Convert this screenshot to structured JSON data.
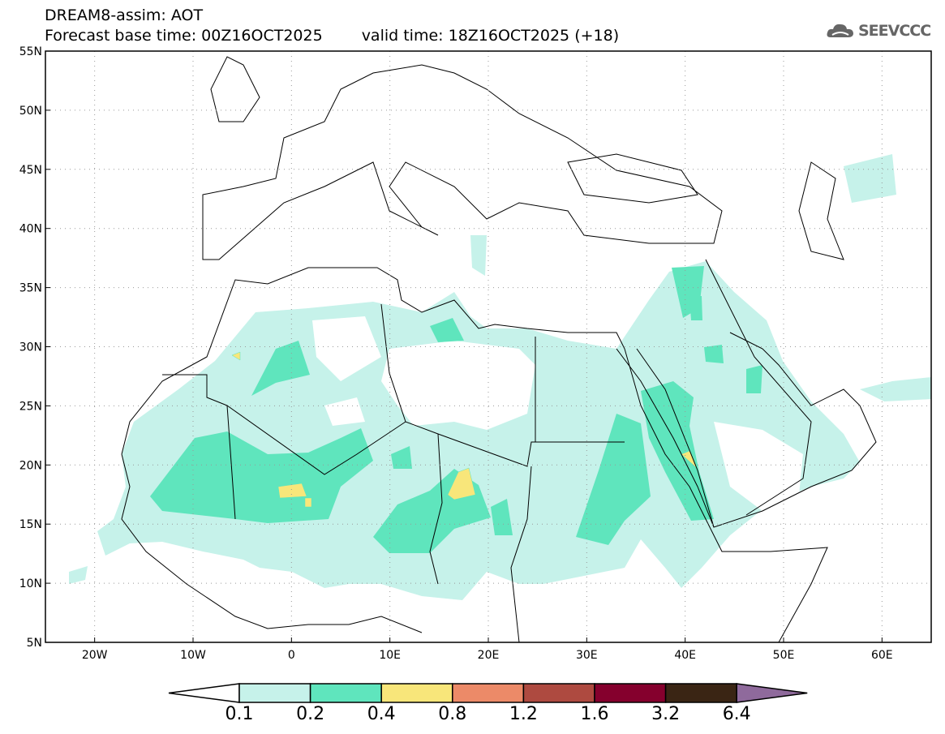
{
  "header": {
    "title": "DREAM8-assim: AOT",
    "base_time": "Forecast base time: 00Z16OCT2025",
    "valid_time": "valid time: 18Z16OCT2025 (+18)"
  },
  "logo": {
    "text": "SEEVCCC",
    "icon": "cloud-icon"
  },
  "map": {
    "lon_labels": [
      "20W",
      "10W",
      "0",
      "10E",
      "20E",
      "30E",
      "40E",
      "50E",
      "60E"
    ],
    "lat_labels": [
      "55N",
      "50N",
      "45N",
      "40N",
      "35N",
      "30N",
      "25N",
      "20N",
      "15N",
      "10N",
      "5N"
    ],
    "lon_range": [
      -25,
      65
    ],
    "lat_range": [
      5,
      55
    ]
  },
  "colorbar": {
    "labels": [
      "0.1",
      "0.2",
      "0.4",
      "0.8",
      "1.2",
      "1.6",
      "3.2",
      "6.4"
    ],
    "colors": [
      "#c6f2ea",
      "#5fe5bd",
      "#f8e67a",
      "#ec8a68",
      "#ae4a40",
      "#85002d",
      "#3a2514",
      "#8f6a9c"
    ],
    "under_color": "#ffffff"
  }
}
